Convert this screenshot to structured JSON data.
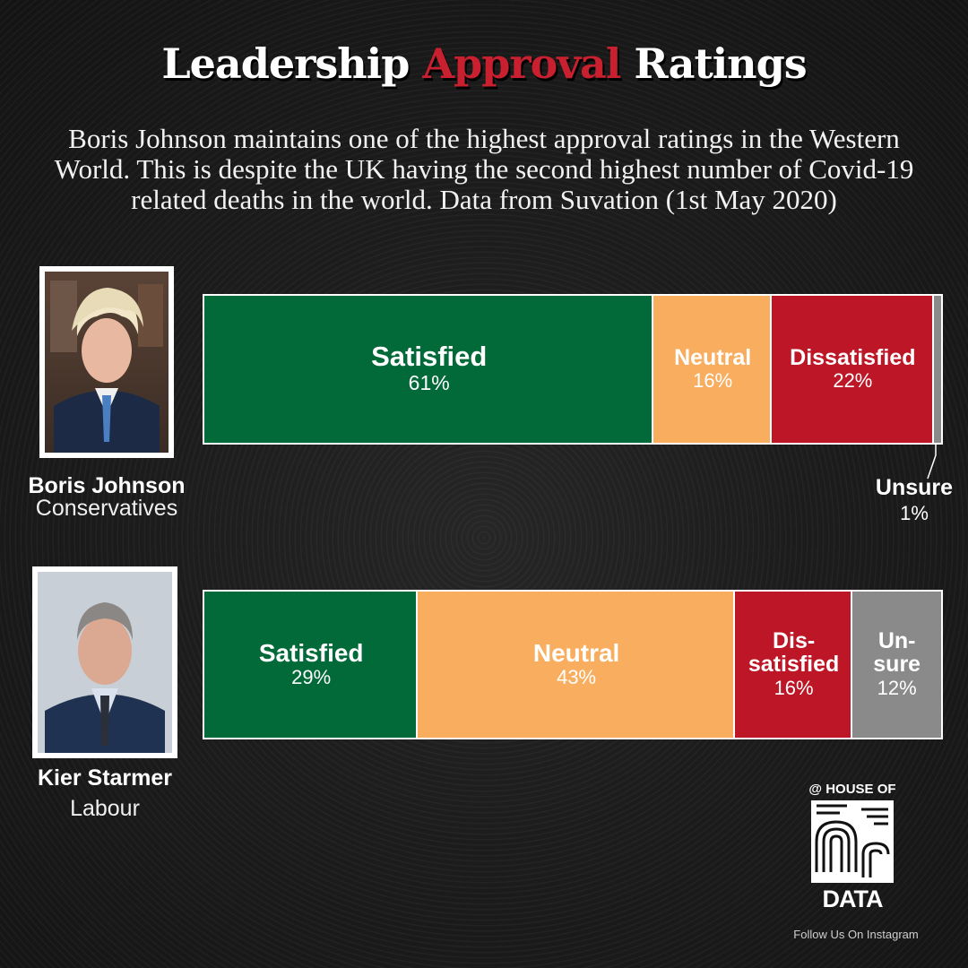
{
  "title": {
    "part1": "Leadership",
    "part2": "Approval",
    "part3": "Ratings"
  },
  "subtitle": "Boris Johnson maintains one of the highest approval ratings in the Western World. This is despite the UK having the second highest number of Covid-19 related deaths in the world. Data from Suvation (1st May 2020)",
  "colors": {
    "satisfied": "#026a38",
    "neutral": "#f8ad5f",
    "dissatisfied": "#bd1626",
    "unsure": "#8a8a8a",
    "title_highlight": "#c8202f"
  },
  "leaders": [
    {
      "name": "Boris Johnson",
      "party": "Conservatives",
      "photo_icon": "boris-johnson-portrait-photo"
    },
    {
      "name": "Kier Starmer",
      "party": "Labour",
      "photo_icon": "kier-starmer-portrait-photo"
    }
  ],
  "chart_data": {
    "type": "bar",
    "orientation": "horizontal-stacked-100",
    "categories": [
      "Boris Johnson",
      "Kier Starmer"
    ],
    "series": [
      {
        "name": "Satisfied",
        "values": [
          61,
          29
        ]
      },
      {
        "name": "Neutral",
        "values": [
          16,
          43
        ]
      },
      {
        "name": "Dissatisfied",
        "values": [
          22,
          16
        ]
      },
      {
        "name": "Unsure",
        "values": [
          1,
          12
        ]
      }
    ],
    "segment_labels": [
      [
        "Satisfied",
        "Neutral",
        "Dissatisfied",
        "Unsure"
      ],
      [
        "Satisfied",
        "Neutral",
        "Dis-\nsatisfied",
        "Un-\nsure"
      ]
    ],
    "value_labels": [
      [
        "61%",
        "16%",
        "22%",
        "1%"
      ],
      [
        "29%",
        "43%",
        "16%",
        "12%"
      ]
    ],
    "xlim": [
      0,
      100
    ],
    "grid": false,
    "legend": "none"
  },
  "brand": {
    "top": "@ HOUSE OF",
    "bottom": "DATA",
    "follow": "Follow Us On Instagram",
    "logo_icon": "house-of-data-logo-icon"
  }
}
